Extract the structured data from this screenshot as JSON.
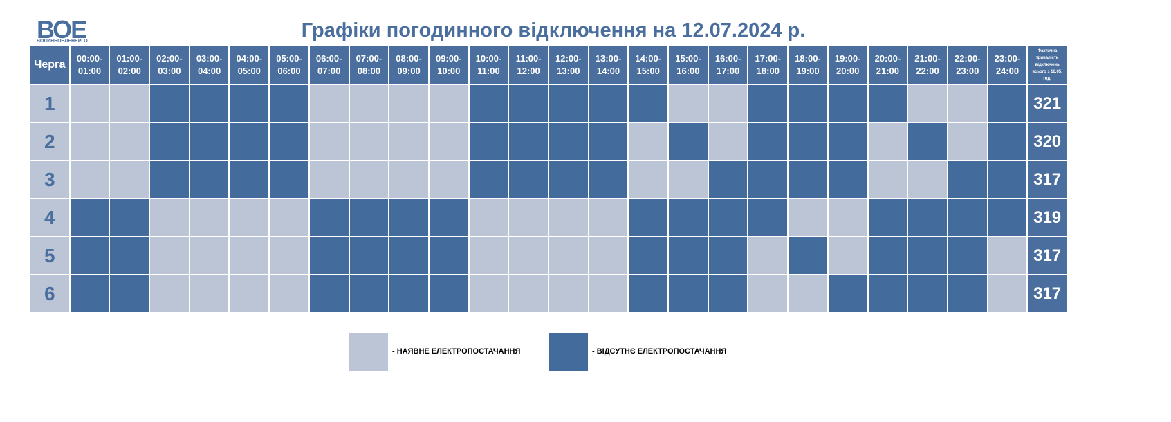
{
  "header": {
    "logo": "ВОЕ",
    "logo_caption": "ВОЛИНЬОБЛЕНЕРГО",
    "title": "Графіки погодинного відключення на 12.07.2024 р."
  },
  "table": {
    "columns": [
      "Черга",
      "00:00-\n01:00",
      "01:00-\n02:00",
      "02:00-\n03:00",
      "03:00-\n04:00",
      "04:00-\n05:00",
      "05:00-\n06:00",
      "06:00-\n07:00",
      "07:00-\n08:00",
      "08:00-\n09:00",
      "09:00-\n10:00",
      "10:00-\n11:00",
      "11:00-\n12:00",
      "12:00-\n13:00",
      "13:00-\n14:00",
      "14:00-\n15:00",
      "15:00-\n16:00",
      "16:00-\n17:00",
      "17:00-\n18:00",
      "18:00-\n19:00",
      "19:00-\n20:00",
      "20:00-\n21:00",
      "21:00-\n22:00",
      "22:00-\n23:00",
      "23:00-\n24:00",
      "Фактична тривалість відключень всього з 16.05, год."
    ],
    "rows": [
      {
        "queue": 1,
        "hours": [
          0,
          0,
          1,
          1,
          1,
          1,
          0,
          0,
          0,
          0,
          1,
          1,
          1,
          1,
          1,
          0,
          0,
          1,
          1,
          1,
          1,
          0,
          0,
          1
        ],
        "total": 321
      },
      {
        "queue": 2,
        "hours": [
          0,
          0,
          1,
          1,
          1,
          1,
          0,
          0,
          0,
          0,
          1,
          1,
          1,
          1,
          0,
          1,
          0,
          1,
          1,
          1,
          0,
          1,
          0,
          1
        ],
        "total": 320
      },
      {
        "queue": 3,
        "hours": [
          0,
          0,
          1,
          1,
          1,
          1,
          0,
          0,
          0,
          0,
          1,
          1,
          1,
          1,
          0,
          0,
          1,
          1,
          1,
          1,
          0,
          0,
          1,
          1
        ],
        "total": 317
      },
      {
        "queue": 4,
        "hours": [
          1,
          1,
          0,
          0,
          0,
          0,
          1,
          1,
          1,
          1,
          0,
          0,
          0,
          0,
          1,
          1,
          1,
          1,
          0,
          0,
          1,
          1,
          1,
          1
        ],
        "total": 319
      },
      {
        "queue": 5,
        "hours": [
          1,
          1,
          0,
          0,
          0,
          0,
          1,
          1,
          1,
          1,
          0,
          0,
          0,
          0,
          1,
          1,
          1,
          0,
          1,
          0,
          1,
          1,
          1,
          0
        ],
        "total": 317
      },
      {
        "queue": 6,
        "hours": [
          1,
          1,
          0,
          0,
          0,
          0,
          1,
          1,
          1,
          1,
          0,
          0,
          0,
          0,
          1,
          1,
          1,
          0,
          0,
          1,
          1,
          1,
          1,
          0
        ],
        "total": 317
      }
    ]
  },
  "legend": [
    {
      "label": "- НАЯВНЕ ЕЛЕКТРОПОСТАЧАННЯ",
      "state": 0,
      "color": "#bcc5d6"
    },
    {
      "label": "- ВІДСУТНЄ ЕЛЕКТРОПОСТАЧАННЯ",
      "state": 1,
      "color": "#436b9c"
    }
  ]
}
